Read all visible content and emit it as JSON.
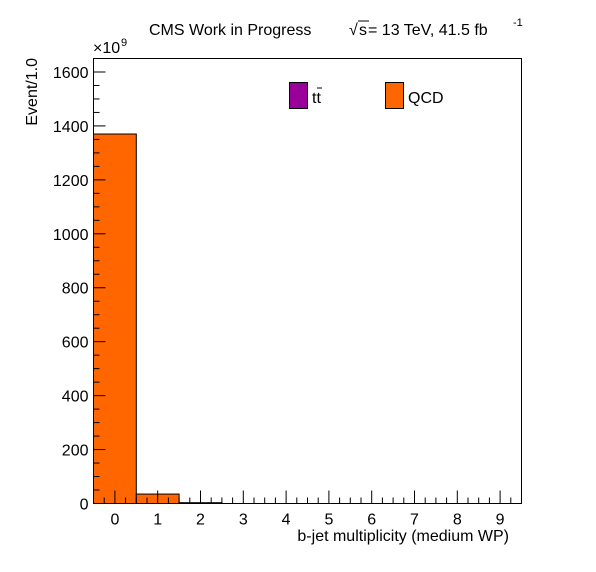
{
  "chart_data": {
    "type": "bar",
    "header": {
      "text_main": "CMS Work in Progress",
      "sqrt_symbol": "√",
      "s": "s",
      "text_energy": " = 13 TeV, 41.5 fb",
      "superscript": "-1"
    },
    "axis_multiplier": "×10",
    "axis_multiplier_exponent": "9",
    "xlabel": "b-jet multiplicity (medium WP)",
    "ylabel": "Event/1.0",
    "xlim": [
      -0.5,
      9.5
    ],
    "ylim": [
      0,
      1650
    ],
    "x_ticks": [
      0,
      1,
      2,
      3,
      4,
      5,
      6,
      7,
      8,
      9
    ],
    "x_tick_labels": [
      "0",
      "1",
      "2",
      "3",
      "4",
      "5",
      "6",
      "7",
      "8",
      "9"
    ],
    "y_ticks": [
      0,
      200,
      400,
      600,
      800,
      1000,
      1200,
      1400,
      1600
    ],
    "y_tick_labels": [
      "0",
      "200",
      "400",
      "600",
      "800",
      "1000",
      "1200",
      "1400",
      "1600"
    ],
    "bin_edges": [
      -0.5,
      0.5,
      1.5,
      2.5,
      3.5,
      4.5,
      5.5,
      6.5,
      7.5,
      8.5,
      9.5
    ],
    "series": [
      {
        "name": "t̅t̅",
        "label_base": "tt",
        "color": "#990099",
        "values": [
          0,
          0,
          0,
          0,
          0,
          0,
          0,
          0,
          0,
          0
        ]
      },
      {
        "name": "QCD",
        "label_base": "QCD",
        "color": "#ff6600",
        "values": [
          1370,
          35,
          3,
          0,
          0,
          0,
          0,
          0,
          0,
          0
        ]
      }
    ],
    "legend": {
      "position": "top-right",
      "entries": [
        "tt",
        "QCD"
      ]
    },
    "grid": false
  }
}
